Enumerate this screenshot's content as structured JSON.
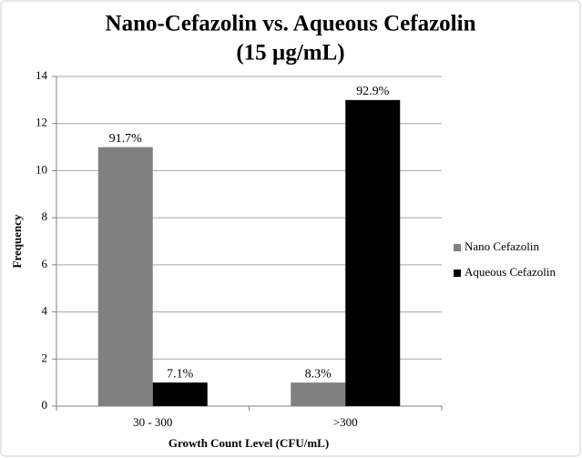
{
  "chart_data": {
    "type": "bar",
    "title": [
      "Nano-Cefazolin vs. Aqueous Cefazolin",
      "(15 µg/mL)"
    ],
    "x_label": "Growth Count Level (CFU/mL)",
    "y_label": "Frequency",
    "categories": [
      "30 - 300",
      ">300"
    ],
    "series": [
      {
        "name": "Nano Cefazolin",
        "color": "#808080",
        "values": [
          11,
          1
        ],
        "percent_labels": [
          "91.7%",
          "8.3%"
        ]
      },
      {
        "name": "Aqueous Cefazolin",
        "color": "#000000",
        "values": [
          1,
          13
        ],
        "percent_labels": [
          "7.1%",
          "92.9%"
        ]
      }
    ],
    "ylim": [
      0,
      14
    ],
    "yticks": [
      0,
      2,
      4,
      6,
      8,
      10,
      12,
      14
    ],
    "grid": true,
    "legend": "right"
  }
}
